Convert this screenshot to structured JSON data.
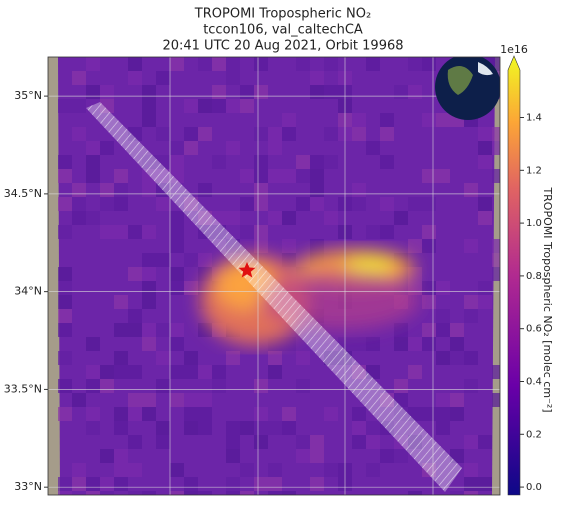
{
  "title": [
    "TROPOMI Tropospheric NO₂",
    "tccon106, val_caltechCA",
    "20:41 UTC 20 Aug 2021, Orbit 19968"
  ],
  "map": {
    "lat_ticks": [
      {
        "value": 35,
        "label": "35°N"
      },
      {
        "value": 34.5,
        "label": "34.5°N"
      },
      {
        "value": 34,
        "label": "34°N"
      },
      {
        "value": 33.5,
        "label": "33.5°N"
      },
      {
        "value": 33,
        "label": "33°N"
      }
    ],
    "lat_range": [
      35.2,
      32.96
    ]
  },
  "colorbar": {
    "exponent": "1e16",
    "label": "TROPOMI Tropospheric NO₂ [molec cm⁻²]",
    "ticks": [
      {
        "value": 0,
        "label": "0.0"
      },
      {
        "value": 0.2,
        "label": "0.2"
      },
      {
        "value": 0.4,
        "label": "0.4"
      },
      {
        "value": 0.6,
        "label": "0.6"
      },
      {
        "value": 0.8,
        "label": "0.8"
      },
      {
        "value": 1,
        "label": "1.0"
      },
      {
        "value": 1.2,
        "label": "1.2"
      },
      {
        "value": 1.4,
        "label": "1.4"
      }
    ],
    "range": [
      -0.03,
      1.58
    ]
  }
}
